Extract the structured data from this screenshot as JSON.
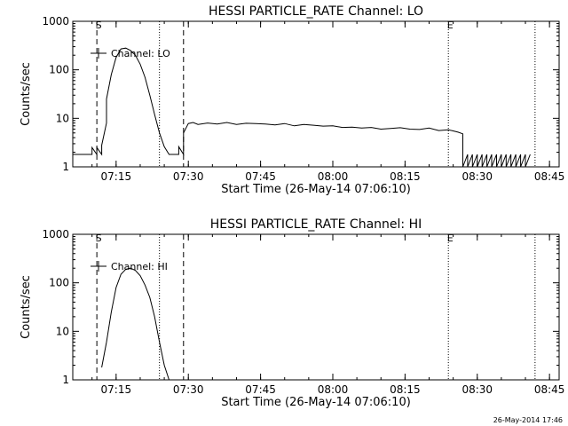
{
  "timestamp": "26-May-2014 17:46",
  "colors": {
    "background": "#ffffff",
    "foreground": "#000000"
  },
  "chart_data": [
    {
      "type": "line",
      "title": "HESSI PARTICLE_RATE Channel: LO",
      "xlabel": "Start Time (26-May-14 07:06:10)",
      "ylabel": "Counts/sec",
      "yscale": "log",
      "ylim": [
        1,
        1000
      ],
      "xlim": [
        "07:06",
        "08:47"
      ],
      "x_ticks": [
        "07:15",
        "07:30",
        "07:45",
        "08:00",
        "08:15",
        "08:30",
        "08:45"
      ],
      "y_ticks": [
        "1",
        "10",
        "100",
        "1000"
      ],
      "legend": {
        "label": "Channel: LO",
        "position": "top-left"
      },
      "markers": [
        {
          "time": "07:11",
          "style": "dashed",
          "label": "S"
        },
        {
          "time": "07:24",
          "style": "dotted",
          "label": ""
        },
        {
          "time": "07:29",
          "style": "dashed",
          "label": ""
        },
        {
          "time": "08:24",
          "style": "dotted",
          "label": "E"
        },
        {
          "time": "08:42",
          "style": "dotted",
          "label": ""
        }
      ],
      "series": [
        {
          "x": [
            "07:06",
            "07:10",
            "07:10",
            "07:11",
            "07:11",
            "07:12",
            "07:12",
            "07:13",
            "07:13",
            "07:14",
            "07:15",
            "07:16",
            "07:17",
            "07:18",
            "07:19",
            "07:20",
            "07:21",
            "07:22",
            "07:23",
            "07:24",
            "07:25",
            "07:26",
            "07:27",
            "07:28",
            "07:28",
            "07:29",
            "07:29",
            "07:29",
            "07:30",
            "07:31",
            "07:32",
            "07:34",
            "07:36",
            "07:38",
            "07:40",
            "07:42",
            "07:44",
            "07:46",
            "07:48",
            "07:50",
            "07:52",
            "07:54",
            "07:56",
            "07:58",
            "08:00",
            "08:02",
            "08:04",
            "08:06",
            "08:08",
            "08:10",
            "08:12",
            "08:14",
            "08:16",
            "08:18",
            "08:20",
            "08:22",
            "08:24",
            "08:25",
            "08:26",
            "08:27",
            "08:27",
            "08:28",
            "08:28",
            "08:29",
            "08:29",
            "08:30",
            "08:30",
            "08:31",
            "08:31",
            "08:32",
            "08:32",
            "08:33",
            "08:33",
            "08:34",
            "08:34",
            "08:35",
            "08:35",
            "08:36",
            "08:36",
            "08:37",
            "08:37",
            "08:38",
            "08:38",
            "08:39",
            "08:39",
            "08:40",
            "08:40",
            "08:41",
            "08:41"
          ],
          "y": [
            1.8,
            1.8,
            2.5,
            1.8,
            2.5,
            1.8,
            2.8,
            8,
            25,
            80,
            180,
            270,
            280,
            250,
            200,
            130,
            70,
            30,
            12,
            5,
            2.6,
            1.8,
            1.8,
            1.8,
            2.6,
            1.8,
            2.6,
            5,
            7.8,
            8.2,
            7.5,
            8,
            7.6,
            8.2,
            7.5,
            7.9,
            7.8,
            7.6,
            7.3,
            7.8,
            7.0,
            7.5,
            7.2,
            6.9,
            7.0,
            6.5,
            6.6,
            6.3,
            6.5,
            6.0,
            6.2,
            6.4,
            6.0,
            5.9,
            6.3,
            5.6,
            5.8,
            5.5,
            5.2,
            4.8,
            1,
            1.8,
            1,
            1.8,
            1,
            1.8,
            1,
            1.8,
            1,
            1.8,
            1,
            1.8,
            1,
            1.8,
            1,
            1.8,
            1,
            1.8,
            1,
            1.8,
            1,
            1.8,
            1,
            1.8,
            1,
            1.8,
            1,
            1.8,
            1.8
          ]
        }
      ]
    },
    {
      "type": "line",
      "title": "HESSI PARTICLE_RATE Channel: HI",
      "xlabel": "Start Time (26-May-14 07:06:10)",
      "ylabel": "Counts/sec",
      "yscale": "log",
      "ylim": [
        1,
        1000
      ],
      "xlim": [
        "07:06",
        "08:47"
      ],
      "x_ticks": [
        "07:15",
        "07:30",
        "07:45",
        "08:00",
        "08:15",
        "08:30",
        "08:45"
      ],
      "y_ticks": [
        "1",
        "10",
        "100",
        "1000"
      ],
      "legend": {
        "label": "Channel: HI",
        "position": "top-left"
      },
      "markers": [
        {
          "time": "07:11",
          "style": "dashed",
          "label": "S"
        },
        {
          "time": "07:24",
          "style": "dotted",
          "label": ""
        },
        {
          "time": "07:29",
          "style": "dashed",
          "label": ""
        },
        {
          "time": "08:24",
          "style": "dotted",
          "label": "E"
        },
        {
          "time": "08:42",
          "style": "dotted",
          "label": ""
        }
      ],
      "series": [
        {
          "x": [
            "07:12",
            "07:13",
            "07:14",
            "07:15",
            "07:16",
            "07:17",
            "07:18",
            "07:19",
            "07:20",
            "07:21",
            "07:22",
            "07:23",
            "07:24",
            "07:25",
            "07:26"
          ],
          "y": [
            1.8,
            6,
            25,
            80,
            150,
            190,
            200,
            180,
            140,
            90,
            50,
            20,
            6,
            2,
            1
          ]
        }
      ]
    }
  ]
}
